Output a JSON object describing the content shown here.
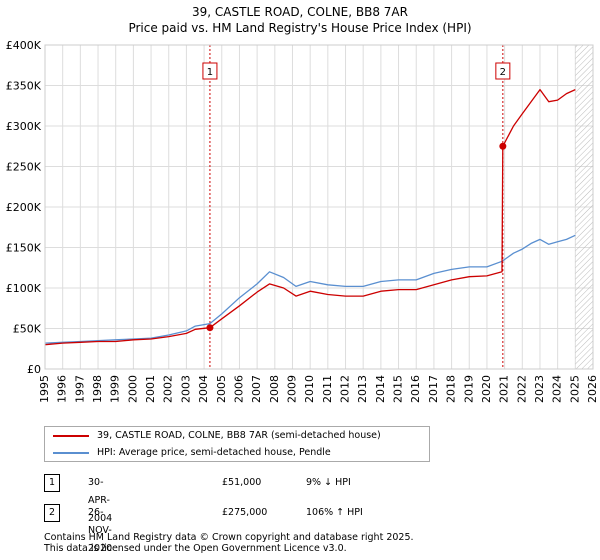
{
  "chart_data": {
    "type": "line",
    "title": "39, CASTLE ROAD, COLNE, BB8 7AR",
    "subtitle": "Price paid vs. HM Land Registry's House Price Index (HPI)",
    "xlabel": "",
    "ylabel": "",
    "xlim": [
      1995,
      2026
    ],
    "ylim": [
      0,
      400000
    ],
    "x_ticks": [
      "1995",
      "1996",
      "1997",
      "1998",
      "1999",
      "2000",
      "2001",
      "2002",
      "2003",
      "2004",
      "2005",
      "2006",
      "2007",
      "2008",
      "2009",
      "2010",
      "2011",
      "2012",
      "2013",
      "2014",
      "2015",
      "2016",
      "2017",
      "2018",
      "2019",
      "2020",
      "2021",
      "2022",
      "2023",
      "2024",
      "2025",
      "2026"
    ],
    "y_ticks": [
      {
        "value": 0,
        "label": "£0"
      },
      {
        "value": 50000,
        "label": "£50K"
      },
      {
        "value": 100000,
        "label": "£100K"
      },
      {
        "value": 150000,
        "label": "£150K"
      },
      {
        "value": 200000,
        "label": "£200K"
      },
      {
        "value": 250000,
        "label": "£250K"
      },
      {
        "value": 300000,
        "label": "£300K"
      },
      {
        "value": 350000,
        "label": "£350K"
      },
      {
        "value": 400000,
        "label": "£400K"
      }
    ],
    "grid": true,
    "series": [
      {
        "name": "39, CASTLE ROAD, COLNE, BB8 7AR (semi-detached house)",
        "color": "#cc0000",
        "x": [
          1995.0,
          1996.0,
          1997.0,
          1998.0,
          1999.0,
          2000.0,
          2001.0,
          2002.0,
          2003.0,
          2003.5,
          2004.33,
          2005.0,
          2006.0,
          2007.0,
          2007.7,
          2008.5,
          2009.2,
          2010.0,
          2011.0,
          2012.0,
          2013.0,
          2014.0,
          2015.0,
          2016.0,
          2017.0,
          2018.0,
          2019.0,
          2020.0,
          2020.85,
          2020.9,
          2021.5,
          2022.0,
          2022.5,
          2023.0,
          2023.5,
          2024.0,
          2024.5,
          2025.0
        ],
        "y": [
          30000,
          32000,
          33000,
          34000,
          34000,
          36000,
          37000,
          40000,
          44000,
          49000,
          51000,
          62000,
          78000,
          95000,
          105000,
          100000,
          90000,
          96000,
          92000,
          90000,
          90000,
          96000,
          98000,
          98000,
          104000,
          110000,
          114000,
          115000,
          120000,
          275000,
          300000,
          315000,
          330000,
          345000,
          330000,
          332000,
          340000,
          345000
        ]
      },
      {
        "name": "HPI: Average price, semi-detached house, Pendle",
        "color": "#5a8fd0",
        "x": [
          1995.0,
          1996.0,
          1997.0,
          1998.0,
          1999.0,
          2000.0,
          2001.0,
          2002.0,
          2003.0,
          2003.5,
          2004.33,
          2005.0,
          2006.0,
          2007.0,
          2007.7,
          2008.5,
          2009.2,
          2010.0,
          2011.0,
          2012.0,
          2013.0,
          2014.0,
          2015.0,
          2016.0,
          2017.0,
          2018.0,
          2019.0,
          2020.0,
          2020.85,
          2021.5,
          2022.0,
          2022.5,
          2023.0,
          2023.5,
          2024.0,
          2024.5,
          2025.0
        ],
        "y": [
          32000,
          33000,
          34000,
          35000,
          36000,
          37000,
          38000,
          42000,
          47000,
          53000,
          56000,
          68000,
          88000,
          105000,
          120000,
          113000,
          102000,
          108000,
          104000,
          102000,
          102000,
          108000,
          110000,
          110000,
          118000,
          123000,
          126000,
          126000,
          133000,
          143000,
          148000,
          155000,
          160000,
          154000,
          157000,
          160000,
          165000
        ]
      }
    ],
    "annotations": [
      {
        "label": "1",
        "x": 2004.33,
        "y": 51000,
        "series": 0
      },
      {
        "label": "2",
        "x": 2020.9,
        "y": 275000,
        "series": 0
      }
    ],
    "hatched_from_x": 2025.0
  },
  "legend": [
    {
      "label": "39, CASTLE ROAD, COLNE, BB8 7AR (semi-detached house)",
      "color": "#cc0000"
    },
    {
      "label": "HPI: Average price, semi-detached house, Pendle",
      "color": "#5a8fd0"
    }
  ],
  "transactions": [
    {
      "num": "1",
      "date": "30-APR-2004",
      "price": "£51,000",
      "hpi": "9% ↓ HPI"
    },
    {
      "num": "2",
      "date": "26-NOV-2020",
      "price": "£275,000",
      "hpi": "106% ↑ HPI"
    }
  ],
  "footer": {
    "line1": "Contains HM Land Registry data © Crown copyright and database right 2025.",
    "line2": "This data is licensed under the Open Government Licence v3.0."
  }
}
